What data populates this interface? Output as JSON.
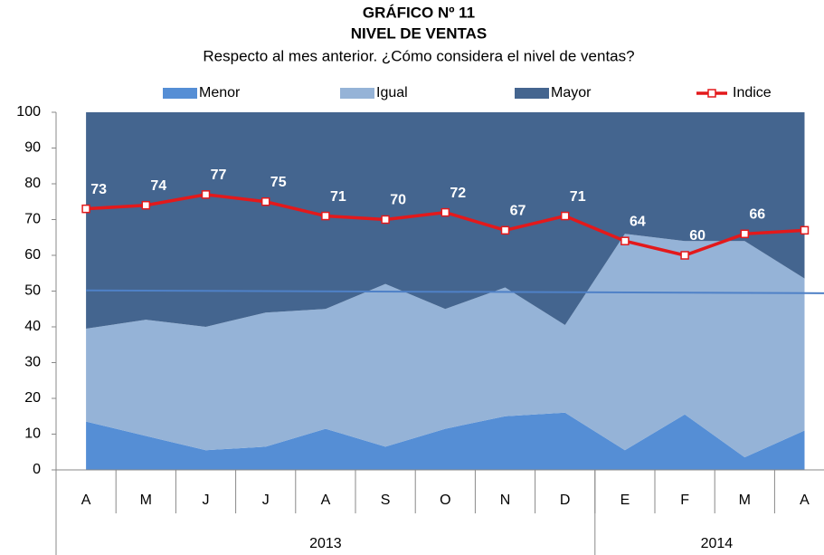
{
  "chart_data": {
    "type": "stacked-area-line",
    "title": "GRÁFICO Nº 11",
    "subtitle": "NIVEL DE VENTAS",
    "description": "Respecto al mes anterior. ¿Cómo considera el nivel de ventas?",
    "categories": [
      "A",
      "M",
      "J",
      "J",
      "A",
      "S",
      "O",
      "N",
      "D",
      "E",
      "F",
      "M",
      "A"
    ],
    "x_groups": [
      {
        "label": "2013",
        "span": 9
      },
      {
        "label": "2014",
        "span": 4
      }
    ],
    "series": [
      {
        "name": "Menor",
        "type": "area",
        "color": "#558ed5",
        "values": [
          13.5,
          9.5,
          5.5,
          6.5,
          11.5,
          6.5,
          11.5,
          15,
          16,
          5.5,
          15.5,
          3.5,
          11
        ]
      },
      {
        "name": "Igual",
        "type": "area",
        "color": "#95b3d7",
        "values": [
          26,
          32.5,
          34.5,
          37.5,
          33.5,
          45.5,
          33.5,
          36,
          24.5,
          60.5,
          48.5,
          60.5,
          42.5
        ]
      },
      {
        "name": "Mayor",
        "type": "area",
        "color": "#44658f",
        "values": [
          60.5,
          58,
          60,
          56,
          55,
          48,
          55,
          49,
          59.5,
          34,
          36,
          36,
          46.5
        ]
      },
      {
        "name": "Indice",
        "type": "line",
        "color": "#e3191b",
        "values": [
          73,
          74,
          77,
          75,
          71,
          70,
          72,
          67,
          71,
          64,
          60,
          66,
          67
        ]
      }
    ],
    "trend_line": {
      "color": "#4f81c7",
      "values": [
        50.2,
        49.4
      ]
    },
    "ylim": [
      0,
      100
    ],
    "yticks": [
      0,
      10,
      20,
      30,
      40,
      50,
      60,
      70,
      80,
      90,
      100
    ]
  }
}
